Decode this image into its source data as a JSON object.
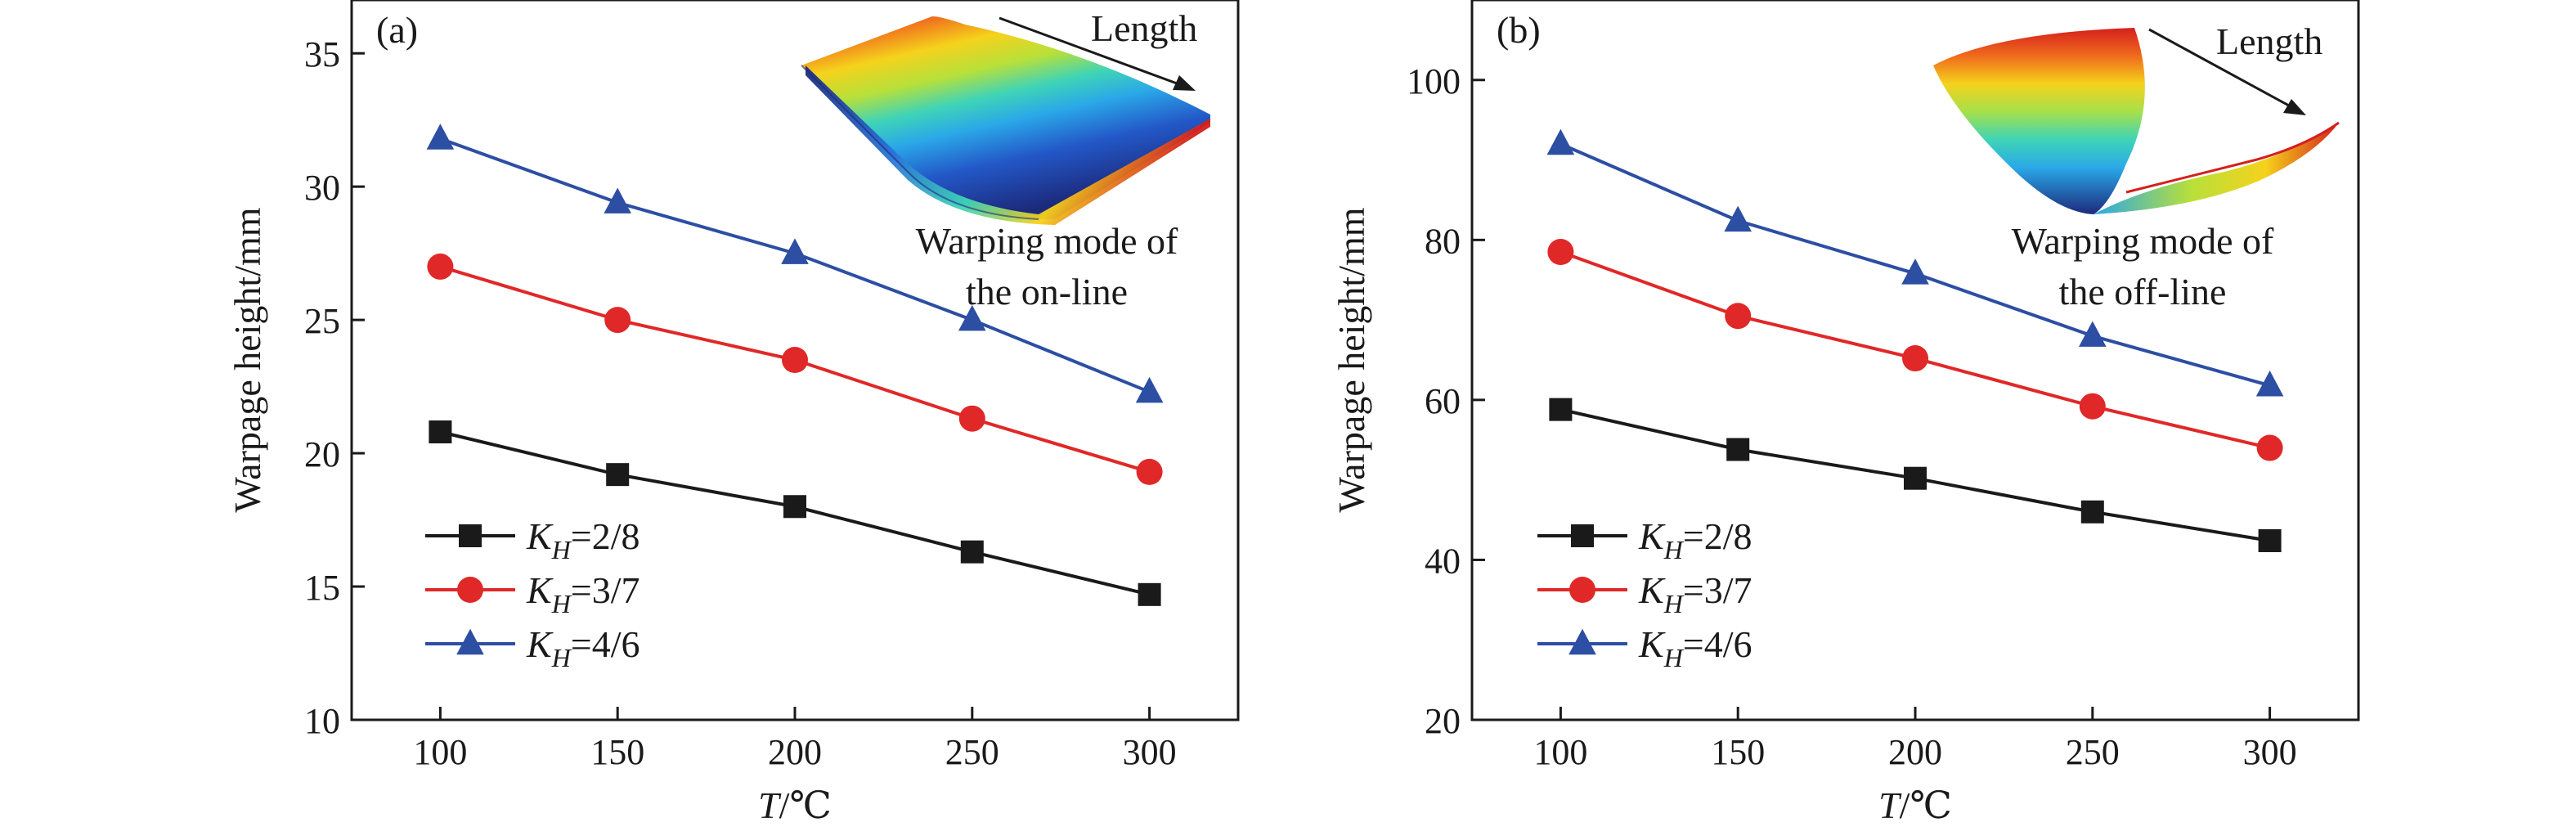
{
  "chart_data": [
    {
      "type": "line",
      "panel_label": "(a)",
      "xlabel": {
        "var": "T",
        "unit": "/℃"
      },
      "ylabel": "Warpage height/mm",
      "x": [
        100,
        150,
        200,
        250,
        300
      ],
      "xlim": [
        75,
        325
      ],
      "ylim": [
        10,
        37
      ],
      "yticks": [
        10,
        15,
        20,
        25,
        30,
        35
      ],
      "xticks": [
        100,
        150,
        200,
        250,
        300
      ],
      "grid": false,
      "legend_position": "bottom-left",
      "series": [
        {
          "name": "K_H=2/8",
          "legend": {
            "sym": "K",
            "sub": "H",
            "val": "=2/8"
          },
          "marker": "square",
          "color": "#1a1a1a",
          "values": [
            20.8,
            19.2,
            18.0,
            16.3,
            14.7
          ]
        },
        {
          "name": "K_H=3/7",
          "legend": {
            "sym": "K",
            "sub": "H",
            "val": "=3/7"
          },
          "marker": "circle",
          "color": "#e02828",
          "values": [
            27.0,
            25.0,
            23.5,
            21.3,
            19.3
          ]
        },
        {
          "name": "K_H=4/6",
          "legend": {
            "sym": "K",
            "sub": "H",
            "val": "=4/6"
          },
          "marker": "triangle",
          "color": "#2c4ea3",
          "values": [
            31.8,
            29.4,
            27.5,
            25.0,
            22.3
          ]
        }
      ],
      "annotation": {
        "arrow_label": "Length",
        "caption_line1": "Warping mode of",
        "caption_line2": "the on-line"
      }
    },
    {
      "type": "line",
      "panel_label": "(b)",
      "xlabel": {
        "var": "T",
        "unit": "/℃"
      },
      "ylabel": "Warpage height/mm",
      "x": [
        100,
        150,
        200,
        250,
        300
      ],
      "xlim": [
        75,
        325
      ],
      "ylim": [
        20,
        110
      ],
      "yticks": [
        20,
        40,
        60,
        80,
        100
      ],
      "xticks": [
        100,
        150,
        200,
        250,
        300
      ],
      "grid": false,
      "legend_position": "bottom-left",
      "series": [
        {
          "name": "K_H=2/8",
          "legend": {
            "sym": "K",
            "sub": "H",
            "val": "=2/8"
          },
          "marker": "square",
          "color": "#1a1a1a",
          "values": [
            58.8,
            53.8,
            50.2,
            46.0,
            42.4
          ]
        },
        {
          "name": "K_H=3/7",
          "legend": {
            "sym": "K",
            "sub": "H",
            "val": "=3/7"
          },
          "marker": "circle",
          "color": "#e02828",
          "values": [
            78.5,
            70.5,
            65.2,
            59.2,
            54.0
          ]
        },
        {
          "name": "K_H=4/6",
          "legend": {
            "sym": "K",
            "sub": "H",
            "val": "=4/6"
          },
          "marker": "triangle",
          "color": "#2c4ea3",
          "values": [
            92.0,
            82.4,
            75.8,
            68.0,
            61.8
          ]
        }
      ],
      "annotation": {
        "arrow_label": "Length",
        "caption_line1": "Warping mode of",
        "caption_line2": "the off-line"
      }
    }
  ]
}
